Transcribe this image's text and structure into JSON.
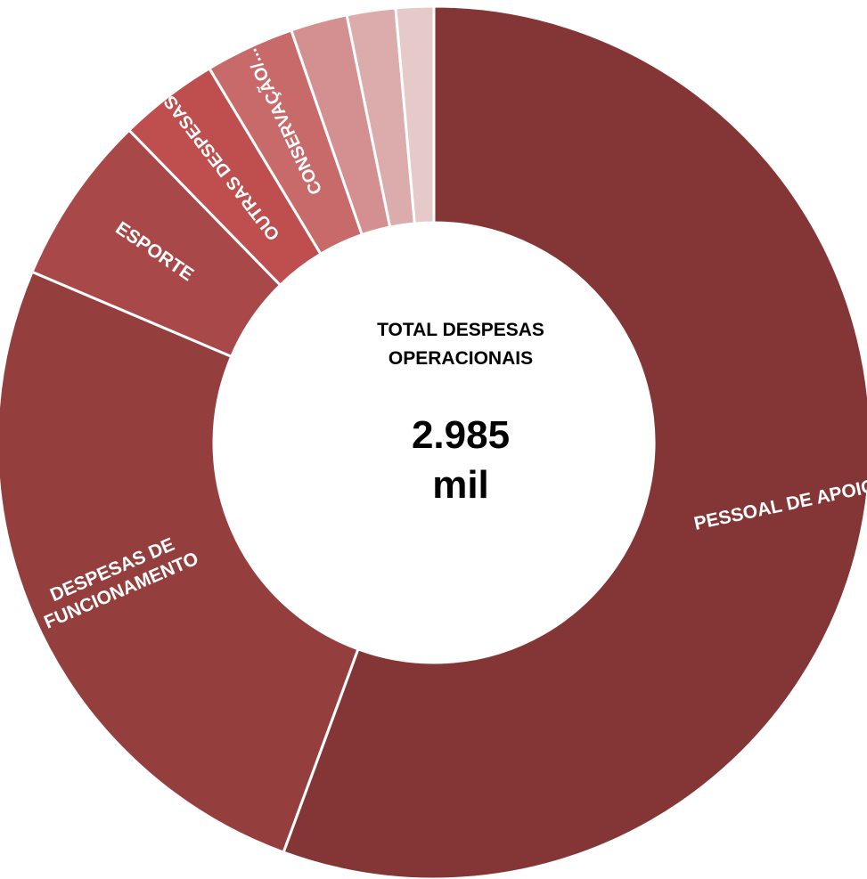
{
  "chart_data": {
    "type": "pie",
    "variant": "donut",
    "center_title_lines": [
      "TOTAL DESPESAS",
      "OPERACIONAIS"
    ],
    "center_value_lines": [
      "2.985",
      "mil"
    ],
    "slices": [
      {
        "label": "PESSOAL DE APOIO",
        "share": 0.556,
        "color": "#843535"
      },
      {
        "label": "DESPESAS DE FUNCIONAMENTO",
        "share": 0.258,
        "color": "#943e3e"
      },
      {
        "label": "ESPORTE",
        "share": 0.063,
        "color": "#a94848"
      },
      {
        "label": "OUTRAS DESPESAS...",
        "share": 0.037,
        "color": "#bf4f4f"
      },
      {
        "label": "CONSERVAÇÃO/...",
        "share": 0.033,
        "color": "#c96a6a"
      },
      {
        "label": "",
        "share": 0.021,
        "color": "#d49090"
      },
      {
        "label": "",
        "share": 0.018,
        "color": "#dcacac"
      },
      {
        "label": "",
        "share": 0.014,
        "color": "#e6c9c9"
      }
    ]
  }
}
